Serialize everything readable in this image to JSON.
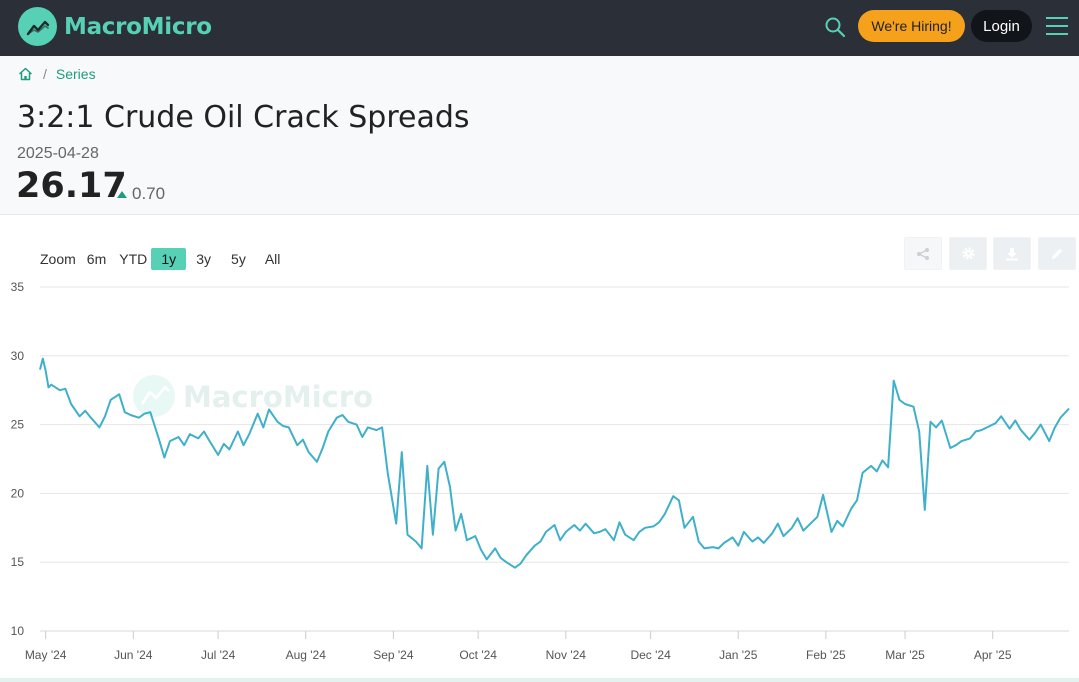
{
  "brand": {
    "name": "MacroMicro",
    "accent": "#56d1b5"
  },
  "nav": {
    "hiring_label": "We're Hiring!",
    "login_label": "Login"
  },
  "breadcrumb": {
    "home": "home-icon",
    "sep": "/",
    "current": "Series"
  },
  "series": {
    "title": "3:2:1 Crude Oil Crack Spreads",
    "date": "2025-04-28",
    "value": "26.17",
    "change": "0.70"
  },
  "zoom": {
    "label": "Zoom",
    "options": [
      "6m",
      "YTD",
      "1y",
      "3y",
      "5y",
      "All"
    ],
    "active": "1y"
  },
  "tools": [
    "share-icon",
    "gear-icon",
    "download-icon",
    "pencil-icon"
  ],
  "watermark": "MacroMicro",
  "chart_data": {
    "type": "line",
    "line_color": "#3fb0c9",
    "grid": true,
    "ylim": [
      10,
      35
    ],
    "yticks": [
      10,
      15,
      20,
      25,
      30,
      35
    ],
    "x_range": [
      "2024-04-29",
      "2025-04-28"
    ],
    "xticks": [
      {
        "label": "May '24",
        "date": "2024-05-01"
      },
      {
        "label": "Jun '24",
        "date": "2024-06-01"
      },
      {
        "label": "Jul '24",
        "date": "2024-07-01"
      },
      {
        "label": "Aug '24",
        "date": "2024-08-01"
      },
      {
        "label": "Sep '24",
        "date": "2024-09-01"
      },
      {
        "label": "Oct '24",
        "date": "2024-10-01"
      },
      {
        "label": "Nov '24",
        "date": "2024-11-01"
      },
      {
        "label": "Dec '24",
        "date": "2024-12-01"
      },
      {
        "label": "Jan '25",
        "date": "2025-01-01"
      },
      {
        "label": "Feb '25",
        "date": "2025-02-01"
      },
      {
        "label": "Mar '25",
        "date": "2025-03-01"
      },
      {
        "label": "Apr '25",
        "date": "2025-04-01"
      }
    ],
    "points": [
      [
        "2024-04-29",
        29.0
      ],
      [
        "2024-04-30",
        29.8
      ],
      [
        "2024-05-01",
        28.9
      ],
      [
        "2024-05-02",
        27.7
      ],
      [
        "2024-05-03",
        27.9
      ],
      [
        "2024-05-06",
        27.5
      ],
      [
        "2024-05-08",
        27.6
      ],
      [
        "2024-05-10",
        26.5
      ],
      [
        "2024-05-13",
        25.6
      ],
      [
        "2024-05-15",
        26.0
      ],
      [
        "2024-05-17",
        25.5
      ],
      [
        "2024-05-20",
        24.8
      ],
      [
        "2024-05-22",
        25.6
      ],
      [
        "2024-05-24",
        26.8
      ],
      [
        "2024-05-27",
        27.2
      ],
      [
        "2024-05-29",
        25.9
      ],
      [
        "2024-05-31",
        25.7
      ],
      [
        "2024-06-03",
        25.5
      ],
      [
        "2024-06-05",
        25.8
      ],
      [
        "2024-06-07",
        25.9
      ],
      [
        "2024-06-10",
        24.0
      ],
      [
        "2024-06-12",
        22.6
      ],
      [
        "2024-06-14",
        23.8
      ],
      [
        "2024-06-17",
        24.1
      ],
      [
        "2024-06-19",
        23.5
      ],
      [
        "2024-06-21",
        24.3
      ],
      [
        "2024-06-24",
        24.0
      ],
      [
        "2024-06-26",
        24.5
      ],
      [
        "2024-06-28",
        23.8
      ],
      [
        "2024-07-01",
        22.8
      ],
      [
        "2024-07-03",
        23.6
      ],
      [
        "2024-07-05",
        23.2
      ],
      [
        "2024-07-08",
        24.5
      ],
      [
        "2024-07-10",
        23.5
      ],
      [
        "2024-07-12",
        24.3
      ],
      [
        "2024-07-15",
        25.8
      ],
      [
        "2024-07-17",
        24.8
      ],
      [
        "2024-07-19",
        26.1
      ],
      [
        "2024-07-22",
        25.2
      ],
      [
        "2024-07-24",
        24.9
      ],
      [
        "2024-07-26",
        24.8
      ],
      [
        "2024-07-29",
        23.5
      ],
      [
        "2024-07-31",
        23.9
      ],
      [
        "2024-08-02",
        23.0
      ],
      [
        "2024-08-05",
        22.3
      ],
      [
        "2024-08-07",
        23.3
      ],
      [
        "2024-08-09",
        24.5
      ],
      [
        "2024-08-12",
        25.5
      ],
      [
        "2024-08-14",
        25.7
      ],
      [
        "2024-08-16",
        25.2
      ],
      [
        "2024-08-19",
        25.0
      ],
      [
        "2024-08-21",
        24.1
      ],
      [
        "2024-08-23",
        24.8
      ],
      [
        "2024-08-26",
        24.6
      ],
      [
        "2024-08-28",
        24.8
      ],
      [
        "2024-08-30",
        21.5
      ],
      [
        "2024-09-02",
        17.8
      ],
      [
        "2024-09-04",
        23.0
      ],
      [
        "2024-09-06",
        17.0
      ],
      [
        "2024-09-09",
        16.5
      ],
      [
        "2024-09-11",
        16.0
      ],
      [
        "2024-09-13",
        22.0
      ],
      [
        "2024-09-15",
        17.0
      ],
      [
        "2024-09-17",
        21.8
      ],
      [
        "2024-09-19",
        22.3
      ],
      [
        "2024-09-21",
        20.5
      ],
      [
        "2024-09-23",
        17.3
      ],
      [
        "2024-09-25",
        18.5
      ],
      [
        "2024-09-27",
        16.6
      ],
      [
        "2024-09-30",
        16.9
      ],
      [
        "2024-10-02",
        15.9
      ],
      [
        "2024-10-04",
        15.2
      ],
      [
        "2024-10-07",
        16.0
      ],
      [
        "2024-10-09",
        15.3
      ],
      [
        "2024-10-11",
        15.0
      ],
      [
        "2024-10-14",
        14.6
      ],
      [
        "2024-10-16",
        14.9
      ],
      [
        "2024-10-18",
        15.5
      ],
      [
        "2024-10-21",
        16.2
      ],
      [
        "2024-10-23",
        16.5
      ],
      [
        "2024-10-25",
        17.2
      ],
      [
        "2024-10-28",
        17.7
      ],
      [
        "2024-10-30",
        16.6
      ],
      [
        "2024-11-01",
        17.2
      ],
      [
        "2024-11-04",
        17.7
      ],
      [
        "2024-11-06",
        17.3
      ],
      [
        "2024-11-08",
        17.8
      ],
      [
        "2024-11-11",
        17.1
      ],
      [
        "2024-11-13",
        17.2
      ],
      [
        "2024-11-15",
        17.4
      ],
      [
        "2024-11-18",
        16.6
      ],
      [
        "2024-11-20",
        17.9
      ],
      [
        "2024-11-22",
        17.0
      ],
      [
        "2024-11-25",
        16.6
      ],
      [
        "2024-11-27",
        17.2
      ],
      [
        "2024-11-29",
        17.5
      ],
      [
        "2024-12-02",
        17.6
      ],
      [
        "2024-12-04",
        17.9
      ],
      [
        "2024-12-06",
        18.5
      ],
      [
        "2024-12-09",
        19.8
      ],
      [
        "2024-12-11",
        19.5
      ],
      [
        "2024-12-13",
        17.5
      ],
      [
        "2024-12-16",
        18.3
      ],
      [
        "2024-12-18",
        16.5
      ],
      [
        "2024-12-20",
        16.0
      ],
      [
        "2024-12-23",
        16.1
      ],
      [
        "2024-12-25",
        16.0
      ],
      [
        "2024-12-27",
        16.4
      ],
      [
        "2024-12-30",
        16.8
      ],
      [
        "2025-01-01",
        16.2
      ],
      [
        "2025-01-03",
        17.2
      ],
      [
        "2025-01-06",
        16.5
      ],
      [
        "2025-01-08",
        16.8
      ],
      [
        "2025-01-10",
        16.4
      ],
      [
        "2025-01-13",
        17.1
      ],
      [
        "2025-01-15",
        17.8
      ],
      [
        "2025-01-17",
        16.9
      ],
      [
        "2025-01-20",
        17.5
      ],
      [
        "2025-01-22",
        18.2
      ],
      [
        "2025-01-24",
        17.3
      ],
      [
        "2025-01-27",
        17.9
      ],
      [
        "2025-01-29",
        18.3
      ],
      [
        "2025-01-31",
        19.9
      ],
      [
        "2025-02-03",
        17.2
      ],
      [
        "2025-02-05",
        18.0
      ],
      [
        "2025-02-07",
        17.6
      ],
      [
        "2025-02-10",
        18.9
      ],
      [
        "2025-02-12",
        19.5
      ],
      [
        "2025-02-14",
        21.5
      ],
      [
        "2025-02-17",
        22.0
      ],
      [
        "2025-02-19",
        21.6
      ],
      [
        "2025-02-21",
        22.4
      ],
      [
        "2025-02-23",
        21.9
      ],
      [
        "2025-02-25",
        28.2
      ],
      [
        "2025-02-27",
        26.8
      ],
      [
        "2025-03-01",
        26.5
      ],
      [
        "2025-03-04",
        26.3
      ],
      [
        "2025-03-06",
        24.5
      ],
      [
        "2025-03-08",
        18.8
      ],
      [
        "2025-03-10",
        25.2
      ],
      [
        "2025-03-12",
        24.8
      ],
      [
        "2025-03-14",
        25.3
      ],
      [
        "2025-03-17",
        23.3
      ],
      [
        "2025-03-19",
        23.5
      ],
      [
        "2025-03-21",
        23.8
      ],
      [
        "2025-03-24",
        24.0
      ],
      [
        "2025-03-26",
        24.5
      ],
      [
        "2025-03-28",
        24.6
      ],
      [
        "2025-03-31",
        24.9
      ],
      [
        "2025-04-02",
        25.1
      ],
      [
        "2025-04-04",
        25.6
      ],
      [
        "2025-04-07",
        24.7
      ],
      [
        "2025-04-09",
        25.3
      ],
      [
        "2025-04-11",
        24.6
      ],
      [
        "2025-04-14",
        23.9
      ],
      [
        "2025-04-16",
        24.4
      ],
      [
        "2025-04-18",
        25.0
      ],
      [
        "2025-04-21",
        23.8
      ],
      [
        "2025-04-23",
        24.8
      ],
      [
        "2025-04-25",
        25.5
      ],
      [
        "2025-04-28",
        26.17
      ]
    ]
  }
}
